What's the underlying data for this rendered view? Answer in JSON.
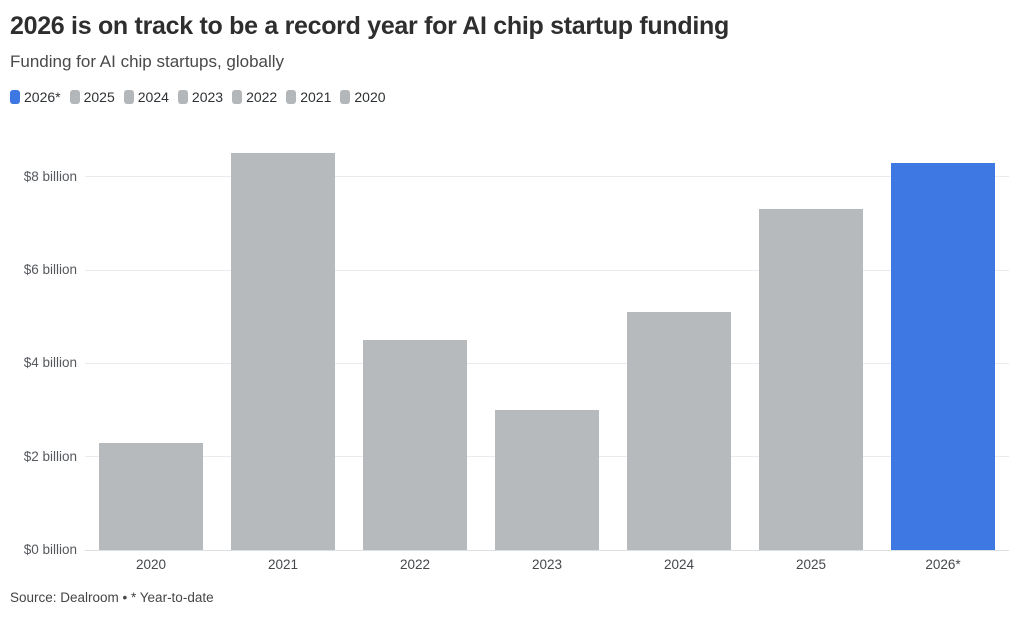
{
  "header": {
    "title": "2026 is on track to be a record year for AI chip startup funding",
    "subtitle": "Funding for AI chip startups, globally"
  },
  "legend": {
    "position": "top-left",
    "items": [
      {
        "label": "2026*",
        "color": "#3c77e2"
      },
      {
        "label": "2025",
        "color": "#b3b7ba"
      },
      {
        "label": "2024",
        "color": "#b3b7ba"
      },
      {
        "label": "2023",
        "color": "#b3b7ba"
      },
      {
        "label": "2022",
        "color": "#b3b7ba"
      },
      {
        "label": "2021",
        "color": "#b3b7ba"
      },
      {
        "label": "2020",
        "color": "#b3b7ba"
      }
    ]
  },
  "chart_data": {
    "type": "bar",
    "title": "2026 is on track to be a record year for AI chip startup funding",
    "subtitle": "Funding for AI chip startups, globally",
    "categories": [
      "2020",
      "2021",
      "2022",
      "2023",
      "2024",
      "2025",
      "2026*"
    ],
    "values": [
      2.3,
      8.5,
      4.5,
      3.0,
      5.1,
      7.3,
      8.3
    ],
    "unit": "billion USD",
    "highlight_category": "2026*",
    "highlight_index": 6,
    "colors": {
      "bar_default": "#b7babd",
      "bar_highlight": "#3d78e3"
    },
    "y_ticks": [
      {
        "value": 0,
        "label": "$0 billion"
      },
      {
        "value": 2,
        "label": "$2 billion"
      },
      {
        "value": 4,
        "label": "$4 billion"
      },
      {
        "value": 6,
        "label": "$6 billion"
      },
      {
        "value": 8,
        "label": "$8 billion"
      }
    ],
    "ylim": [
      0,
      8.8
    ],
    "xlabel": "",
    "ylabel": "",
    "grid": "horizontal",
    "legend_position": "top"
  },
  "footer": {
    "source": "Source: Dealroom • * Year-to-date"
  }
}
